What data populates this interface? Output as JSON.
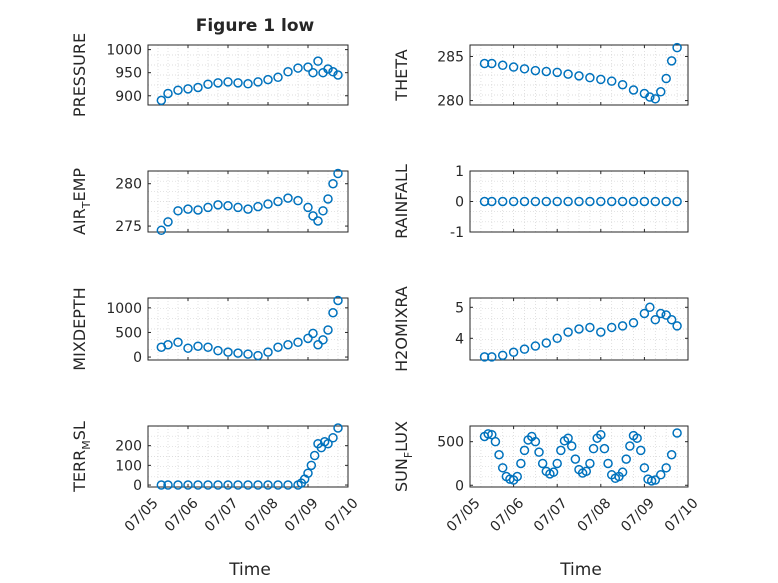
{
  "figure": {
    "title": "Figure 1 low",
    "marker_color": "#0072BD",
    "axis_color": "#262626",
    "grid_color": "#d4d4d4",
    "date_ticks": [
      "07/05",
      "07/06",
      "07/07",
      "07/08",
      "07/09",
      "07/10"
    ]
  },
  "chart_data": [
    {
      "type": "scatter",
      "ylabel": "PRESSURE",
      "xlabel": "",
      "xlim": [
        "07/05",
        "07/10"
      ],
      "ylim": [
        880,
        1010
      ],
      "yticks": [
        "1000",
        "950",
        "900"
      ],
      "grid": true,
      "x": [
        "07/05 08:00",
        "07/05 12:00",
        "07/05 18:00",
        "07/06 00:00",
        "07/06 06:00",
        "07/06 12:00",
        "07/06 18:00",
        "07/07 00:00",
        "07/07 06:00",
        "07/07 12:00",
        "07/07 18:00",
        "07/08 00:00",
        "07/08 06:00",
        "07/08 12:00",
        "07/08 18:00",
        "07/09 00:00",
        "07/09 03:00",
        "07/09 06:00",
        "07/09 09:00",
        "07/09 12:00",
        "07/09 15:00",
        "07/09 18:00"
      ],
      "y": [
        890,
        905,
        912,
        915,
        918,
        925,
        928,
        930,
        928,
        926,
        930,
        935,
        940,
        952,
        960,
        962,
        950,
        975,
        950,
        958,
        952,
        945
      ]
    },
    {
      "type": "scatter",
      "ylabel": "THETA",
      "xlabel": "",
      "xlim": [
        "07/05",
        "07/10"
      ],
      "ylim": [
        279.5,
        286.3
      ],
      "yticks": [
        "285",
        "280"
      ],
      "grid": true,
      "x": [
        "07/05 08:00",
        "07/05 12:00",
        "07/05 18:00",
        "07/06 00:00",
        "07/06 06:00",
        "07/06 12:00",
        "07/06 18:00",
        "07/07 00:00",
        "07/07 06:00",
        "07/07 12:00",
        "07/07 18:00",
        "07/08 00:00",
        "07/08 06:00",
        "07/08 12:00",
        "07/08 18:00",
        "07/09 00:00",
        "07/09 03:00",
        "07/09 06:00",
        "07/09 09:00",
        "07/09 12:00",
        "07/09 15:00",
        "07/09 18:00"
      ],
      "y": [
        284.2,
        284.2,
        284.0,
        283.8,
        283.6,
        283.4,
        283.3,
        283.2,
        283.0,
        282.8,
        282.6,
        282.4,
        282.2,
        281.8,
        281.2,
        280.8,
        280.4,
        280.2,
        281.0,
        282.5,
        284.5,
        286.0
      ]
    },
    {
      "type": "scatter",
      "ylabel": "AIR_TEMP",
      "xlabel": "",
      "xlim": [
        "07/05",
        "07/10"
      ],
      "ylim": [
        274.3,
        281.5
      ],
      "yticks": [
        "280",
        "275"
      ],
      "grid": true,
      "x": [
        "07/05 08:00",
        "07/05 12:00",
        "07/05 18:00",
        "07/06 00:00",
        "07/06 06:00",
        "07/06 12:00",
        "07/06 18:00",
        "07/07 00:00",
        "07/07 06:00",
        "07/07 12:00",
        "07/07 18:00",
        "07/08 00:00",
        "07/08 06:00",
        "07/08 12:00",
        "07/08 18:00",
        "07/09 00:00",
        "07/09 03:00",
        "07/09 06:00",
        "07/09 09:00",
        "07/09 12:00",
        "07/09 15:00",
        "07/09 18:00"
      ],
      "y": [
        274.5,
        275.5,
        276.8,
        277.0,
        276.9,
        277.2,
        277.5,
        277.4,
        277.2,
        277.0,
        277.3,
        277.6,
        277.9,
        278.3,
        278.0,
        277.2,
        276.2,
        275.6,
        276.8,
        278.2,
        280.0,
        281.2
      ]
    },
    {
      "type": "scatter",
      "ylabel": "RAINFALL",
      "xlabel": "",
      "xlim": [
        "07/05",
        "07/10"
      ],
      "ylim": [
        -1,
        1
      ],
      "yticks": [
        "1",
        "0",
        "-1"
      ],
      "grid": true,
      "x": [
        "07/05 08:00",
        "07/05 12:00",
        "07/05 18:00",
        "07/06 00:00",
        "07/06 06:00",
        "07/06 12:00",
        "07/06 18:00",
        "07/07 00:00",
        "07/07 06:00",
        "07/07 12:00",
        "07/07 18:00",
        "07/08 00:00",
        "07/08 06:00",
        "07/08 12:00",
        "07/08 18:00",
        "07/09 00:00",
        "07/09 06:00",
        "07/09 12:00",
        "07/09 18:00"
      ],
      "y": [
        0,
        0,
        0,
        0,
        0,
        0,
        0,
        0,
        0,
        0,
        0,
        0,
        0,
        0,
        0,
        0,
        0,
        0,
        0
      ]
    },
    {
      "type": "scatter",
      "ylabel": "MIXDEPTH",
      "xlabel": "",
      "xlim": [
        "07/05",
        "07/10"
      ],
      "ylim": [
        -60,
        1200
      ],
      "yticks": [
        "1000",
        "500",
        "0"
      ],
      "grid": true,
      "x": [
        "07/05 08:00",
        "07/05 12:00",
        "07/05 18:00",
        "07/06 00:00",
        "07/06 06:00",
        "07/06 12:00",
        "07/06 18:00",
        "07/07 00:00",
        "07/07 06:00",
        "07/07 12:00",
        "07/07 18:00",
        "07/08 00:00",
        "07/08 06:00",
        "07/08 12:00",
        "07/08 18:00",
        "07/09 00:00",
        "07/09 03:00",
        "07/09 06:00",
        "07/09 09:00",
        "07/09 12:00",
        "07/09 15:00",
        "07/09 18:00"
      ],
      "y": [
        200,
        250,
        300,
        180,
        220,
        200,
        130,
        100,
        80,
        60,
        30,
        100,
        200,
        250,
        300,
        380,
        480,
        250,
        350,
        550,
        900,
        1150
      ]
    },
    {
      "type": "scatter",
      "ylabel": "H2OMIXRA",
      "xlabel": "",
      "xlim": [
        "07/05",
        "07/10"
      ],
      "ylim": [
        3.3,
        5.3
      ],
      "yticks": [
        "5",
        "4"
      ],
      "grid": true,
      "x": [
        "07/05 08:00",
        "07/05 12:00",
        "07/05 18:00",
        "07/06 00:00",
        "07/06 06:00",
        "07/06 12:00",
        "07/06 18:00",
        "07/07 00:00",
        "07/07 06:00",
        "07/07 12:00",
        "07/07 18:00",
        "07/08 00:00",
        "07/08 06:00",
        "07/08 12:00",
        "07/08 18:00",
        "07/09 00:00",
        "07/09 03:00",
        "07/09 06:00",
        "07/09 09:00",
        "07/09 12:00",
        "07/09 15:00",
        "07/09 18:00"
      ],
      "y": [
        3.4,
        3.4,
        3.45,
        3.55,
        3.65,
        3.75,
        3.85,
        4.0,
        4.2,
        4.3,
        4.35,
        4.2,
        4.35,
        4.4,
        4.5,
        4.8,
        5.0,
        4.6,
        4.8,
        4.75,
        4.6,
        4.4
      ]
    },
    {
      "type": "scatter",
      "ylabel": "TERR_MSL",
      "xlabel": "Time",
      "xlim": [
        "07/05",
        "07/10"
      ],
      "ylim": [
        -10,
        300
      ],
      "yticks": [
        "200",
        "100",
        "0"
      ],
      "grid": true,
      "x": [
        "07/05 08:00",
        "07/05 12:00",
        "07/05 18:00",
        "07/06 00:00",
        "07/06 06:00",
        "07/06 12:00",
        "07/06 18:00",
        "07/07 00:00",
        "07/07 06:00",
        "07/07 12:00",
        "07/07 18:00",
        "07/08 00:00",
        "07/08 06:00",
        "07/08 12:00",
        "07/08 18:00",
        "07/08 20:00",
        "07/08 22:00",
        "07/09 00:00",
        "07/09 02:00",
        "07/09 04:00",
        "07/09 06:00",
        "07/09 08:00",
        "07/09 10:00",
        "07/09 12:00",
        "07/09 15:00",
        "07/09 18:00"
      ],
      "y": [
        0,
        0,
        0,
        0,
        0,
        0,
        0,
        0,
        0,
        0,
        0,
        0,
        0,
        0,
        0,
        10,
        30,
        60,
        100,
        150,
        210,
        190,
        220,
        210,
        240,
        290
      ]
    },
    {
      "type": "scatter",
      "ylabel": "SUN_FLUX",
      "xlabel": "Time",
      "xlim": [
        "07/05",
        "07/10"
      ],
      "ylim": [
        -20,
        680
      ],
      "yticks": [
        "500",
        "0"
      ],
      "grid": true,
      "x": [
        "07/05 08:00",
        "07/05 10:00",
        "07/05 12:00",
        "07/05 14:00",
        "07/05 16:00",
        "07/05 18:00",
        "07/05 20:00",
        "07/05 22:00",
        "07/06 00:00",
        "07/06 02:00",
        "07/06 04:00",
        "07/06 06:00",
        "07/06 08:00",
        "07/06 10:00",
        "07/06 12:00",
        "07/06 14:00",
        "07/06 16:00",
        "07/06 18:00",
        "07/06 20:00",
        "07/06 22:00",
        "07/07 00:00",
        "07/07 02:00",
        "07/07 04:00",
        "07/07 06:00",
        "07/07 08:00",
        "07/07 10:00",
        "07/07 12:00",
        "07/07 14:00",
        "07/07 16:00",
        "07/07 18:00",
        "07/07 20:00",
        "07/07 22:00",
        "07/08 00:00",
        "07/08 02:00",
        "07/08 04:00",
        "07/08 06:00",
        "07/08 08:00",
        "07/08 10:00",
        "07/08 12:00",
        "07/08 14:00",
        "07/08 16:00",
        "07/08 18:00",
        "07/08 20:00",
        "07/08 22:00",
        "07/09 00:00",
        "07/09 02:00",
        "07/09 04:00",
        "07/09 06:00",
        "07/09 09:00",
        "07/09 12:00",
        "07/09 15:00",
        "07/09 18:00"
      ],
      "y": [
        560,
        590,
        580,
        500,
        350,
        200,
        100,
        70,
        60,
        100,
        250,
        400,
        520,
        560,
        500,
        380,
        250,
        160,
        130,
        150,
        250,
        400,
        510,
        540,
        450,
        300,
        180,
        140,
        160,
        250,
        420,
        540,
        580,
        420,
        250,
        120,
        80,
        100,
        150,
        300,
        450,
        570,
        540,
        400,
        200,
        70,
        50,
        60,
        120,
        200,
        350,
        600
      ]
    }
  ]
}
